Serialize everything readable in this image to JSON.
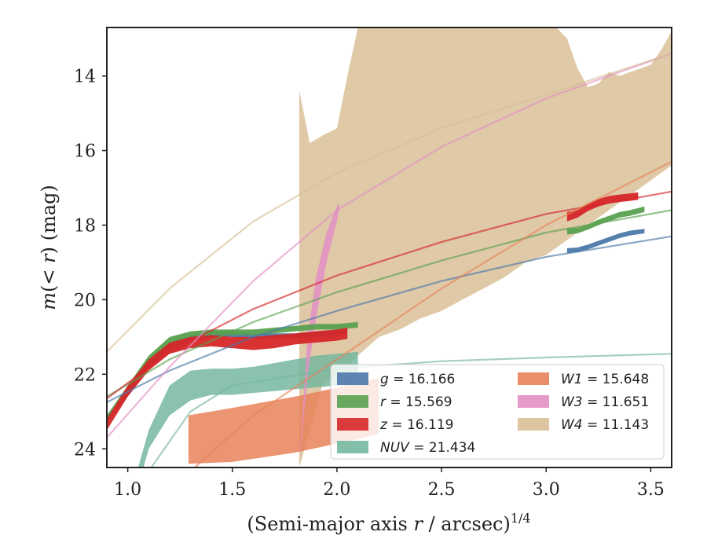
{
  "chart_data": {
    "type": "area",
    "xlabel": "(Semi-major axis r / arcsec)",
    "xlabel_parts": {
      "pre": "(Semi-major axis ",
      "var": "r",
      "post": " / arcsec)",
      "sup": "1/4"
    },
    "ylabel": "m(< r) (mag)",
    "ylabel_parts": {
      "m": "m",
      "open": "(",
      "lt": "< ",
      "r": "r",
      "close": ")",
      "unit": " (mag)"
    },
    "xlim": [
      0.9,
      3.6
    ],
    "ylim": [
      24.5,
      12.7
    ],
    "y_inverted": true,
    "x_ticks": [
      1.0,
      1.5,
      2.0,
      2.5,
      3.0,
      3.5
    ],
    "x_tick_labels": [
      "1.0",
      "1.5",
      "2.0",
      "2.5",
      "3.0",
      "3.5"
    ],
    "y_ticks": [
      14,
      16,
      18,
      20,
      22,
      24
    ],
    "y_tick_labels": [
      "14",
      "16",
      "18",
      "20",
      "22",
      "24"
    ],
    "grid": false,
    "legend_position": "lower-right",
    "series": [
      {
        "name": "g",
        "label_value": "16.166",
        "color": "#4c78a8",
        "band": {
          "x": [
            0.9,
            1.0,
            1.1,
            1.2,
            1.3,
            1.4,
            1.5,
            1.6,
            1.7,
            1.8,
            1.9,
            2.0,
            2.05
          ],
          "y_low": [
            23.3,
            22.6,
            21.8,
            21.35,
            21.1,
            21.0,
            21.0,
            21.05,
            21.05,
            21.05,
            21.0,
            20.95,
            20.9
          ],
          "y_high": [
            23.1,
            22.4,
            21.6,
            21.15,
            20.95,
            20.85,
            20.85,
            20.9,
            20.9,
            20.9,
            20.85,
            20.8,
            20.75
          ]
        },
        "band2": {
          "x": [
            3.1,
            3.15,
            3.2,
            3.25,
            3.3,
            3.35,
            3.4,
            3.47
          ],
          "y_low": [
            18.75,
            18.72,
            18.65,
            18.55,
            18.45,
            18.35,
            18.28,
            18.22
          ],
          "y_high": [
            18.62,
            18.6,
            18.52,
            18.42,
            18.32,
            18.22,
            18.15,
            18.1
          ]
        },
        "model": {
          "x": [
            0.9,
            1.2,
            1.6,
            2.0,
            2.5,
            3.0,
            3.6
          ],
          "y": [
            22.75,
            21.9,
            21.0,
            20.3,
            19.5,
            18.85,
            18.3
          ]
        }
      },
      {
        "name": "r",
        "label_value": "15.569",
        "color": "#59a14f",
        "band": {
          "x": [
            0.9,
            1.0,
            1.1,
            1.2,
            1.3,
            1.4,
            1.5,
            1.6,
            1.7,
            1.8,
            1.9,
            2.0,
            2.1
          ],
          "y_low": [
            23.3,
            22.5,
            21.7,
            21.2,
            21.0,
            20.95,
            20.95,
            20.95,
            20.9,
            20.85,
            20.8,
            20.8,
            20.75
          ],
          "y_high": [
            23.1,
            22.3,
            21.5,
            21.0,
            20.85,
            20.8,
            20.8,
            20.8,
            20.75,
            20.7,
            20.65,
            20.65,
            20.6
          ]
        },
        "band2": {
          "x": [
            3.1,
            3.15,
            3.2,
            3.25,
            3.3,
            3.35,
            3.4,
            3.47
          ],
          "y_low": [
            18.25,
            18.22,
            18.12,
            18.0,
            17.9,
            17.8,
            17.75,
            17.65
          ],
          "y_high": [
            18.08,
            18.08,
            17.98,
            17.85,
            17.75,
            17.65,
            17.6,
            17.5
          ]
        },
        "model": {
          "x": [
            0.9,
            1.2,
            1.6,
            2.0,
            2.5,
            3.0,
            3.6
          ],
          "y": [
            22.6,
            21.6,
            20.6,
            19.8,
            18.95,
            18.2,
            17.6
          ]
        }
      },
      {
        "name": "z",
        "label_value": "16.119",
        "color": "#d62728",
        "band": {
          "x": [
            0.9,
            1.0,
            1.1,
            1.2,
            1.3,
            1.4,
            1.5,
            1.6,
            1.7,
            1.8,
            1.9,
            2.0,
            2.05
          ],
          "y_low": [
            23.5,
            22.6,
            21.9,
            21.45,
            21.3,
            21.25,
            21.3,
            21.35,
            21.3,
            21.2,
            21.15,
            21.1,
            21.05
          ],
          "y_high": [
            23.2,
            22.3,
            21.6,
            21.15,
            21.0,
            20.95,
            21.0,
            21.0,
            20.95,
            20.9,
            20.85,
            20.8,
            20.75
          ]
        },
        "band2": {
          "x": [
            3.1,
            3.15,
            3.2,
            3.25,
            3.3,
            3.35,
            3.4,
            3.44
          ],
          "y_low": [
            17.9,
            17.8,
            17.62,
            17.5,
            17.42,
            17.38,
            17.35,
            17.32
          ],
          "y_high": [
            17.65,
            17.6,
            17.42,
            17.3,
            17.22,
            17.18,
            17.15,
            17.12
          ]
        },
        "model": {
          "x": [
            0.9,
            1.2,
            1.6,
            2.0,
            2.5,
            3.0,
            3.6
          ],
          "y": [
            22.65,
            21.4,
            20.25,
            19.35,
            18.45,
            17.7,
            17.1
          ]
        }
      },
      {
        "name": "NUV",
        "label_value": "21.434",
        "color": "#76b7a0",
        "band": {
          "x": [
            1.0,
            1.05,
            1.1,
            1.2,
            1.3,
            1.4,
            1.5,
            1.6,
            1.7,
            1.8,
            1.9,
            2.0,
            2.1
          ],
          "y_low": [
            26.0,
            25.0,
            24.0,
            23.1,
            22.7,
            22.55,
            22.55,
            22.5,
            22.45,
            22.4,
            22.35,
            22.3,
            22.3
          ],
          "y_high": [
            25.5,
            24.5,
            23.5,
            22.3,
            21.9,
            21.85,
            21.85,
            21.8,
            21.7,
            21.6,
            21.5,
            21.45,
            21.4
          ]
        },
        "model": {
          "x": [
            1.1,
            1.3,
            1.5,
            2.0,
            2.5,
            3.0,
            3.6
          ],
          "y": [
            24.6,
            23.0,
            22.3,
            21.85,
            21.65,
            21.55,
            21.45
          ]
        }
      },
      {
        "name": "W1",
        "label_value": "15.648",
        "color": "#e8825a",
        "band": {
          "x": [
            1.29,
            1.5,
            1.8,
            2.05,
            2.2
          ],
          "y_low": [
            24.4,
            24.35,
            24.1,
            23.8,
            23.6
          ],
          "y_high": [
            23.1,
            22.9,
            22.6,
            22.3,
            22.1
          ]
        },
        "model": {
          "x": [
            1.3,
            1.6,
            2.0,
            2.5,
            3.0,
            3.6
          ],
          "y": [
            24.6,
            23.1,
            21.6,
            19.7,
            18.0,
            16.3
          ]
        }
      },
      {
        "name": "W3",
        "label_value": "11.651",
        "color": "#e38fc4",
        "band": {
          "x": [
            1.82,
            1.86,
            1.9,
            1.95,
            2.0,
            2.01
          ],
          "y_low": [
            24.4,
            22.0,
            20.5,
            19.0,
            17.9,
            17.6
          ],
          "y_high": [
            24.4,
            21.0,
            19.4,
            18.2,
            17.5,
            17.4
          ]
        },
        "model": {
          "x": [
            0.9,
            1.2,
            1.6,
            2.0,
            2.5,
            3.0,
            3.6
          ],
          "y": [
            23.7,
            21.8,
            19.5,
            17.6,
            15.9,
            14.6,
            13.4
          ]
        }
      },
      {
        "name": "W4",
        "label_value": "11.143",
        "color": "#d9bf98",
        "band": {
          "x": [
            1.82,
            1.87,
            1.93,
            2.0,
            2.05,
            2.1,
            2.2,
            2.3,
            2.4,
            2.5,
            2.6,
            2.7,
            2.8,
            2.9,
            3.0,
            3.05,
            3.1,
            3.15,
            3.2,
            3.25,
            3.3,
            3.35,
            3.4,
            3.45,
            3.5,
            3.55,
            3.6
          ],
          "y_low": [
            24.5,
            23.5,
            22.3,
            22.0,
            21.8,
            21.5,
            21.0,
            20.8,
            20.5,
            20.3,
            20.0,
            19.7,
            19.4,
            19.0,
            18.8,
            18.6,
            18.4,
            18.2,
            18.0,
            17.8,
            17.6,
            17.4,
            17.2,
            17.0,
            16.8,
            16.6,
            16.4
          ],
          "y_high": [
            14.4,
            15.8,
            15.6,
            15.4,
            14.0,
            12.7,
            12.7,
            12.7,
            12.7,
            12.7,
            12.7,
            12.7,
            12.7,
            12.7,
            12.7,
            12.7,
            13.0,
            13.8,
            14.3,
            14.2,
            13.9,
            14.0,
            13.9,
            13.8,
            13.7,
            13.3,
            12.8
          ]
        },
        "model": {
          "x": [
            0.9,
            1.2,
            1.6,
            2.0,
            2.5,
            3.0,
            3.6
          ],
          "y": [
            21.4,
            19.7,
            17.9,
            16.6,
            15.4,
            14.5,
            13.4
          ]
        }
      }
    ]
  }
}
